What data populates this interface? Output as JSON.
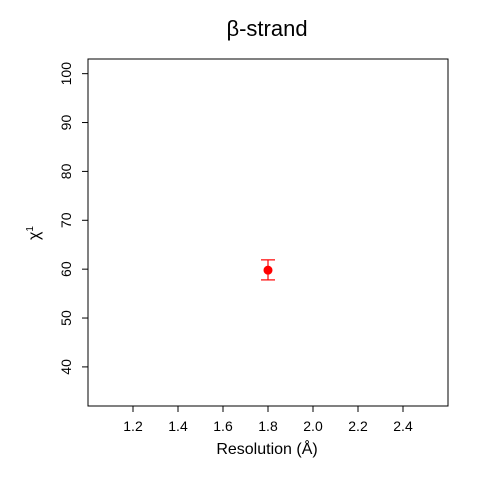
{
  "chart_data": {
    "type": "scatter",
    "title": "β-strand",
    "xlabel": "Resolution (Å)",
    "ylabel": "χ",
    "ylabel_superscript": "1",
    "xlim": [
      1.0,
      2.6
    ],
    "ylim": [
      32,
      103
    ],
    "x_ticks": [
      1.2,
      1.4,
      1.6,
      1.8,
      2.0,
      2.2,
      2.4
    ],
    "x_tick_labels": [
      "1.2",
      "1.4",
      "1.6",
      "1.8",
      "2.0",
      "2.2",
      "2.4"
    ],
    "y_ticks": [
      40,
      50,
      60,
      70,
      80,
      90,
      100
    ],
    "y_tick_labels": [
      "40",
      "50",
      "60",
      "70",
      "80",
      "90",
      "100"
    ],
    "grid": false,
    "series": [
      {
        "name": "β-strand",
        "color": "#ff0000",
        "points": [
          {
            "x": 1.8,
            "y": 59.8,
            "y_low": 57.8,
            "y_high": 61.9
          }
        ]
      }
    ]
  }
}
